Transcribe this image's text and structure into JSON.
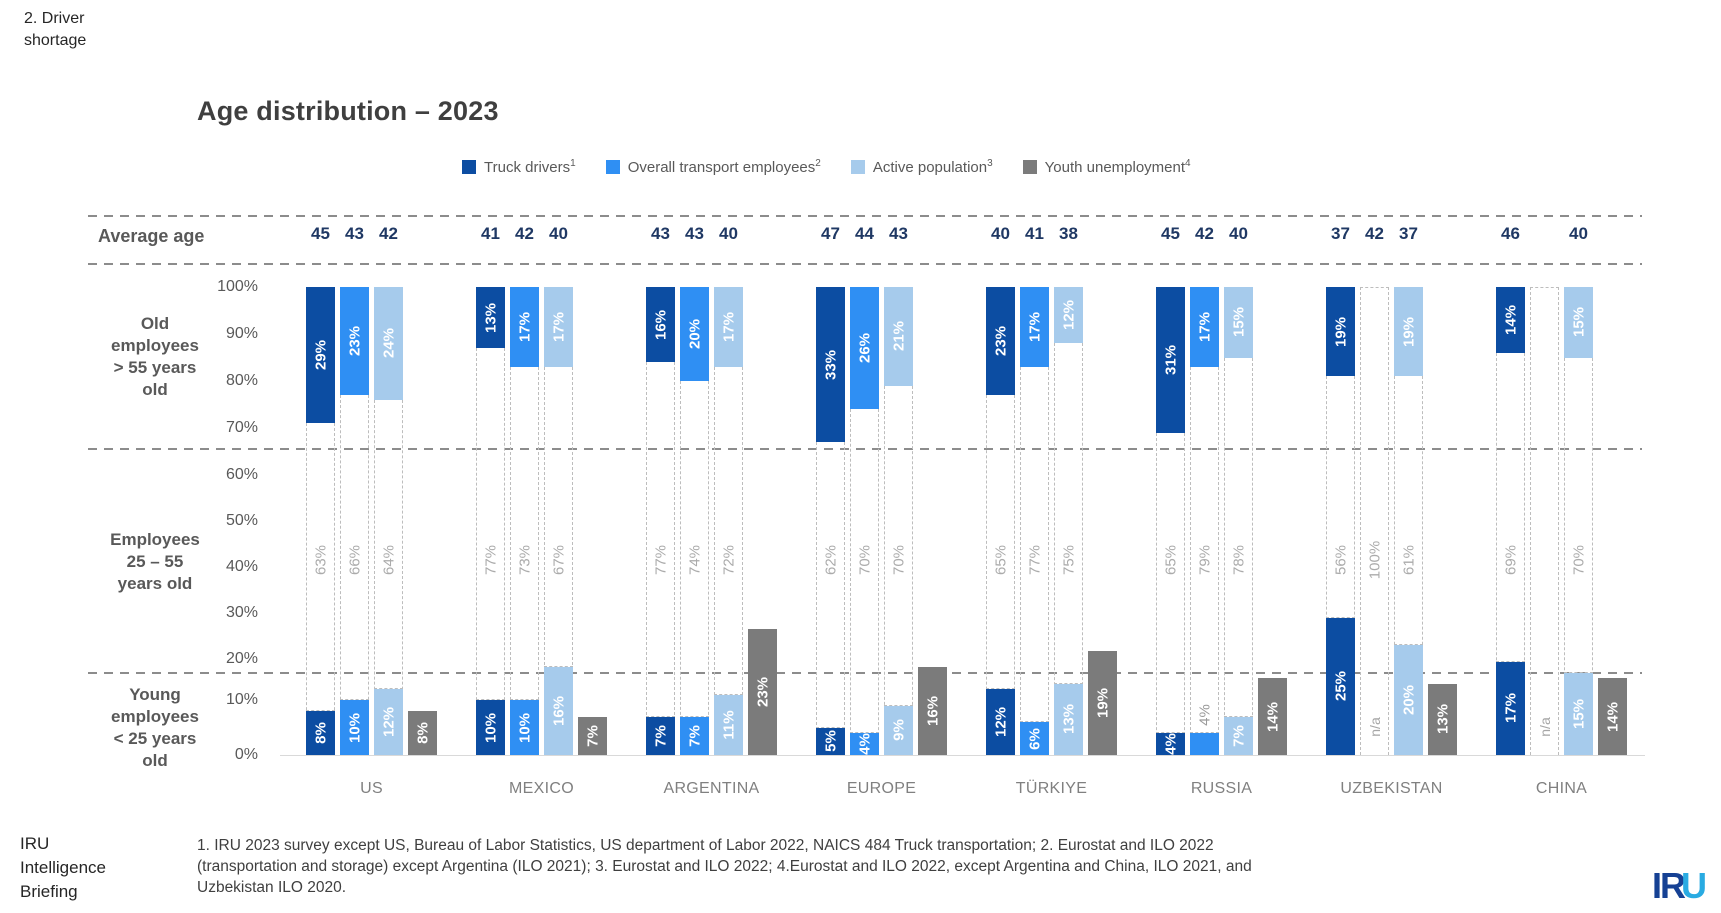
{
  "header": {
    "page_label": "2. Driver\nshortage"
  },
  "title": "Age distribution – 2023",
  "legend": [
    {
      "label": "Truck drivers",
      "sup": "1",
      "color": "#0C4DA2"
    },
    {
      "label": "Overall transport employees",
      "sup": "2",
      "color": "#2F8FF3"
    },
    {
      "label": "Active population",
      "sup": "3",
      "color": "#A6CBEC"
    },
    {
      "label": "Youth unemployment",
      "sup": "4",
      "color": "#7B7B7B"
    }
  ],
  "chart_data": {
    "type": "bar",
    "title": "Age distribution – 2023",
    "series": [
      "Truck drivers",
      "Overall transport employees",
      "Active population",
      "Youth unemployment"
    ],
    "average_age_label": "Average age",
    "na_label": "n/a",
    "band_labels": {
      "old": "Old\nemployees\n> 55 years\nold",
      "mid": "Employees\n25 – 55\nyears old",
      "young": "Young\nemployees\n< 25 years\nold"
    },
    "axis_ticks": {
      "old": [
        "100%",
        "90%",
        "80%",
        "70%"
      ],
      "mid": [
        "60%",
        "50%",
        "40%",
        "30%",
        "20%"
      ],
      "young": [
        "10%",
        "0%"
      ]
    },
    "countries": [
      {
        "name": "US",
        "average_age": [
          45,
          43,
          42
        ],
        "old_pct": [
          29,
          23,
          24
        ],
        "mid_pct": [
          63,
          66,
          64
        ],
        "young_pct": [
          8,
          10,
          12
        ],
        "youth_unemployment_pct": 8
      },
      {
        "name": "MEXICO",
        "average_age": [
          41,
          42,
          40
        ],
        "old_pct": [
          13,
          17,
          17
        ],
        "mid_pct": [
          77,
          73,
          67
        ],
        "young_pct": [
          10,
          10,
          16
        ],
        "youth_unemployment_pct": 7
      },
      {
        "name": "ARGENTINA",
        "average_age": [
          43,
          43,
          40
        ],
        "old_pct": [
          16,
          20,
          17
        ],
        "mid_pct": [
          77,
          74,
          72
        ],
        "young_pct": [
          7,
          7,
          11
        ],
        "youth_unemployment_pct": 23
      },
      {
        "name": "EUROPE",
        "average_age": [
          47,
          44,
          43
        ],
        "old_pct": [
          33,
          26,
          21
        ],
        "mid_pct": [
          62,
          70,
          70
        ],
        "young_pct": [
          5,
          4,
          9
        ],
        "youth_unemployment_pct": 16
      },
      {
        "name": "TÜRKIYE",
        "average_age": [
          40,
          41,
          38
        ],
        "old_pct": [
          23,
          17,
          12
        ],
        "mid_pct": [
          65,
          77,
          75
        ],
        "young_pct": [
          12,
          6,
          13
        ],
        "youth_unemployment_pct": 19
      },
      {
        "name": "RUSSIA",
        "average_age": [
          45,
          42,
          40
        ],
        "old_pct": [
          31,
          17,
          15
        ],
        "mid_pct": [
          65,
          79,
          78
        ],
        "young_pct": [
          4,
          4,
          7
        ],
        "young_label_out": [
          false,
          true,
          false
        ],
        "youth_unemployment_pct": 14
      },
      {
        "name": "UZBEKISTAN",
        "average_age": [
          37,
          42,
          37
        ],
        "old_pct": [
          19,
          null,
          19
        ],
        "mid_pct": [
          56,
          100,
          61
        ],
        "young_pct": [
          25,
          null,
          20
        ],
        "youth_unemployment_pct": 13
      },
      {
        "name": "CHINA",
        "average_age": [
          46,
          null,
          40
        ],
        "old_pct": [
          14,
          null,
          15
        ],
        "mid_pct": [
          69,
          null,
          70
        ],
        "young_pct": [
          17,
          null,
          15
        ],
        "youth_unemployment_pct": 14
      }
    ]
  },
  "footnotes": "1. IRU 2023 survey except US, Bureau of Labor Statistics, US department of Labor 2022, NAICS 484 Truck transportation; 2. Eurostat and ILO 2022\n(transportation and storage) except Argentina (ILO 2021); 3. Eurostat and ILO 2022; 4.Eurostat and ILO 2022, except Argentina and China, ILO 2021, and\nUzbekistan ILO 2020.",
  "brand": {
    "brief": "IRU\nIntelligence\nBriefing",
    "logo_dark": "IR",
    "logo_light": "U"
  }
}
